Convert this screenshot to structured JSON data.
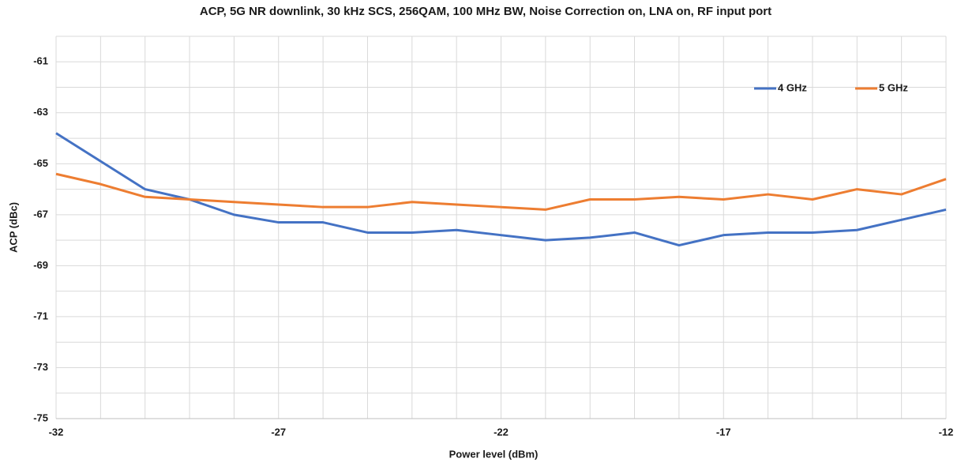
{
  "chart_data": {
    "type": "line",
    "title": "ACP, 5G NR downlink, 30 kHz SCS, 256QAM, 100 MHz BW, Noise Correction on, LNA on, RF input port",
    "x_label": "Power level (dBm)",
    "y_label": "ACP (dBc)",
    "x": [
      -32,
      -31,
      -30,
      -29,
      -28,
      -27,
      -26,
      -25,
      -24,
      -23,
      -22,
      -21,
      -20,
      -19,
      -18,
      -17,
      -16,
      -15,
      -14,
      -13,
      -12
    ],
    "series": [
      {
        "name": "4 GHz",
        "color": "#4472c4",
        "values": [
          -63.8,
          -64.9,
          -66.0,
          -66.4,
          -67.0,
          -67.3,
          -67.3,
          -67.7,
          -67.7,
          -67.6,
          -67.8,
          -68.0,
          -67.9,
          -67.7,
          -68.2,
          -67.8,
          -67.7,
          -67.7,
          -67.6,
          -67.2,
          -66.8
        ]
      },
      {
        "name": "5 GHz",
        "color": "#ed7d31",
        "values": [
          -65.4,
          -65.8,
          -66.3,
          -66.4,
          -66.5,
          -66.6,
          -66.7,
          -66.7,
          -66.5,
          -66.6,
          -66.7,
          -66.8,
          -66.4,
          -66.4,
          -66.3,
          -66.4,
          -66.2,
          -66.4,
          -66.0,
          -66.2,
          -65.6
        ]
      }
    ],
    "xlim": [
      -32,
      -12
    ],
    "xticks": [
      -32,
      -27,
      -22,
      -17,
      -12
    ],
    "xminorticks": [
      -31,
      -30,
      -29,
      -28,
      -26,
      -25,
      -24,
      -23,
      -21,
      -20,
      -19,
      -18,
      -16,
      -15,
      -14,
      -13
    ],
    "ylim": [
      -75,
      -60
    ],
    "yticks": [
      -75,
      -73,
      -71,
      -69,
      -67,
      -65,
      -63,
      -61
    ],
    "yminorticks": [
      -74,
      -72,
      -70,
      -68,
      -66,
      -64,
      -62,
      -60
    ],
    "grid": true,
    "legend": "upper right"
  }
}
